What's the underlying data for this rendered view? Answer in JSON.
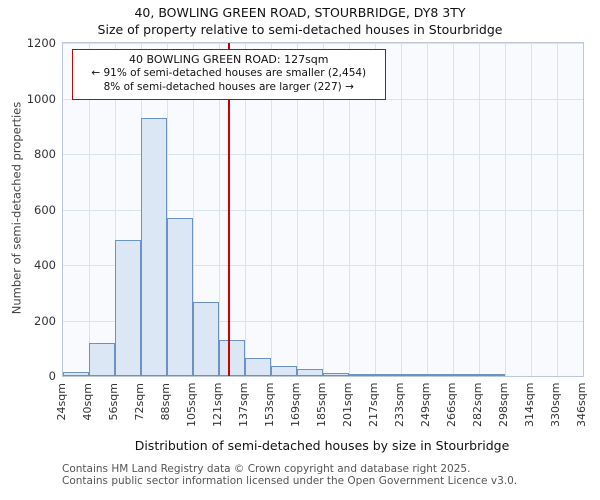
{
  "title": "40, BOWLING GREEN ROAD, STOURBRIDGE, DY8 3TY",
  "subtitle": "Size of property relative to semi-detached houses in Stourbridge",
  "chart_data": {
    "type": "bar",
    "categories": [
      "24sqm",
      "40sqm",
      "56sqm",
      "72sqm",
      "88sqm",
      "105sqm",
      "121sqm",
      "137sqm",
      "153sqm",
      "169sqm",
      "185sqm",
      "201sqm",
      "217sqm",
      "233sqm",
      "249sqm",
      "266sqm",
      "282sqm",
      "298sqm",
      "314sqm",
      "330sqm",
      "346sqm"
    ],
    "values": [
      15,
      120,
      490,
      930,
      570,
      265,
      130,
      65,
      35,
      25,
      12,
      8,
      8,
      5,
      3,
      2,
      2,
      0,
      0,
      0
    ],
    "title": "40, BOWLING GREEN ROAD, STOURBRIDGE, DY8 3TY",
    "xlabel": "Distribution of semi-detached houses by size in Stourbridge",
    "ylabel": "Number of semi-detached properties",
    "ylim": [
      0,
      1200
    ],
    "yticks": [
      0,
      200,
      400,
      600,
      800,
      1000,
      1200
    ],
    "grid": true,
    "legend": "none",
    "bar_fill": "#dce7f5",
    "bar_border": "#6c92c4",
    "marker": {
      "value_sqm": 127,
      "color": "#cc0000"
    },
    "annotation": {
      "line1": "40 BOWLING GREEN ROAD: 127sqm",
      "line2": "← 91% of semi-detached houses are smaller (2,454)",
      "line3": "8% of semi-detached houses are larger (227) →"
    }
  },
  "footer": {
    "line1": "Contains HM Land Registry data © Crown copyright and database right 2025.",
    "line2": "Contains public sector information licensed under the Open Government Licence v3.0."
  }
}
